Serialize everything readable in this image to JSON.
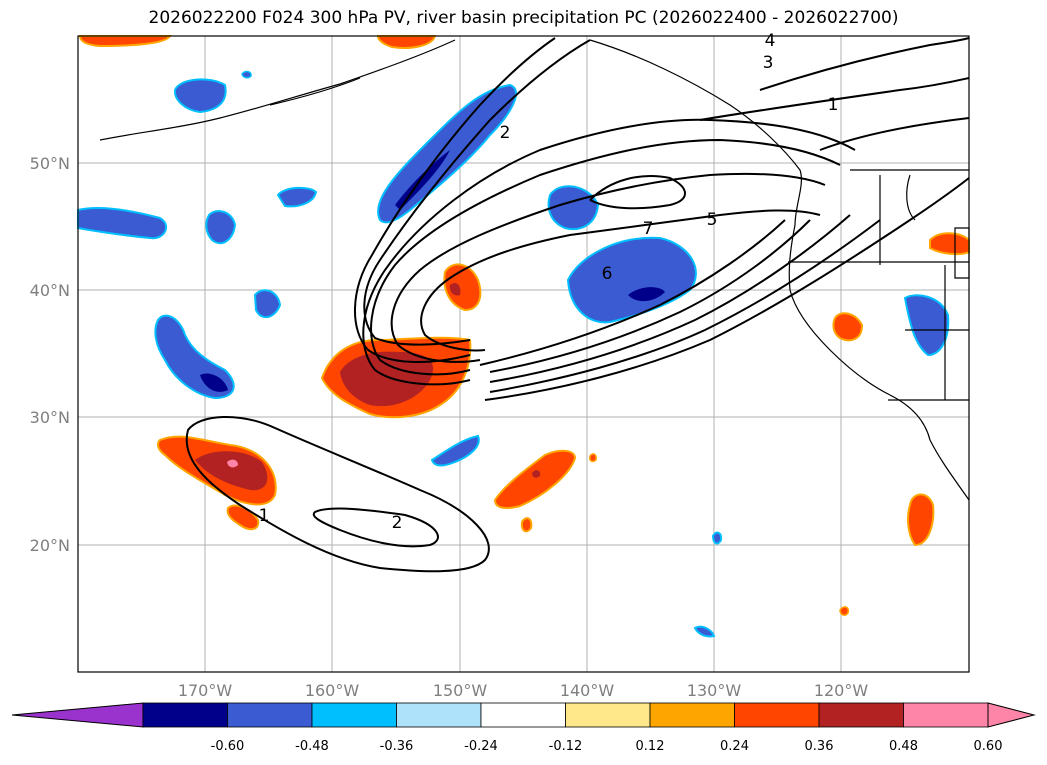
{
  "title": "2026022200 F024 300 hPa PV, river basin precipitation PC (2026022400 - 2026022700)",
  "map": {
    "lat_ticks": [
      "50°N",
      "40°N",
      "30°N",
      "20°N"
    ],
    "lon_ticks": [
      "170°W",
      "160°W",
      "150°W",
      "140°W",
      "130°W",
      "120°W"
    ],
    "pv_contour_labels": [
      "4",
      "3",
      "2",
      "1",
      "7",
      "5",
      "6",
      "1",
      "2"
    ]
  },
  "colorbar": {
    "labels": [
      "-0.60",
      "-0.48",
      "-0.36",
      "-0.24",
      "-0.12",
      "0.12",
      "0.24",
      "0.36",
      "0.48",
      "0.60"
    ],
    "colors": {
      "under": "#9a32cd",
      "bins": [
        "#00008b",
        "#3a5bd1",
        "#00bfff",
        "#aee2fb",
        "#ffffff",
        "#ffe88a",
        "#ffa500",
        "#ff4500",
        "#b22222",
        "#ff85a8"
      ],
      "over": "#ff85a8"
    }
  }
}
